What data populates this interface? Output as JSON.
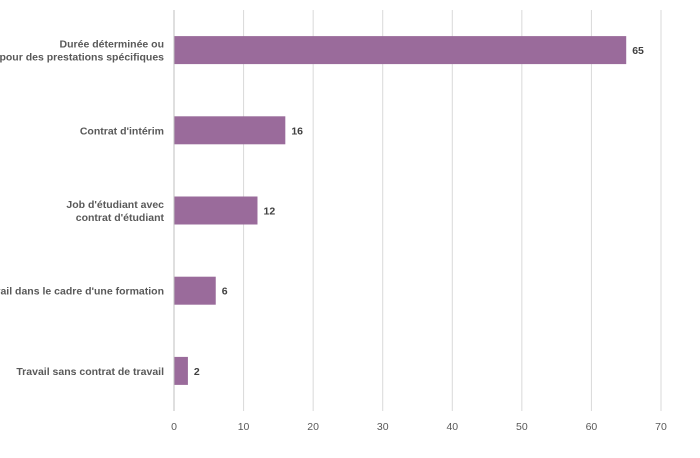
{
  "chart_data": {
    "type": "bar",
    "orientation": "horizontal",
    "categories": [
      [
        "Durée déterminée ou",
        "pour des prestations spécifiques"
      ],
      [
        "Contrat d'intérim"
      ],
      [
        "Job d'étudiant avec",
        "contrat d'étudiant"
      ],
      [
        "Travail dans le cadre d'une formation"
      ],
      [
        "Travail sans contrat de travail"
      ]
    ],
    "values": [
      65,
      16,
      12,
      6,
      2
    ],
    "xlim": [
      0,
      70
    ],
    "xticks": [
      0,
      10,
      20,
      30,
      40,
      50,
      60,
      70
    ],
    "grid": true,
    "data_labels": true,
    "bar_color": "#9a6b9b",
    "title": "",
    "xlabel": "",
    "ylabel": ""
  }
}
